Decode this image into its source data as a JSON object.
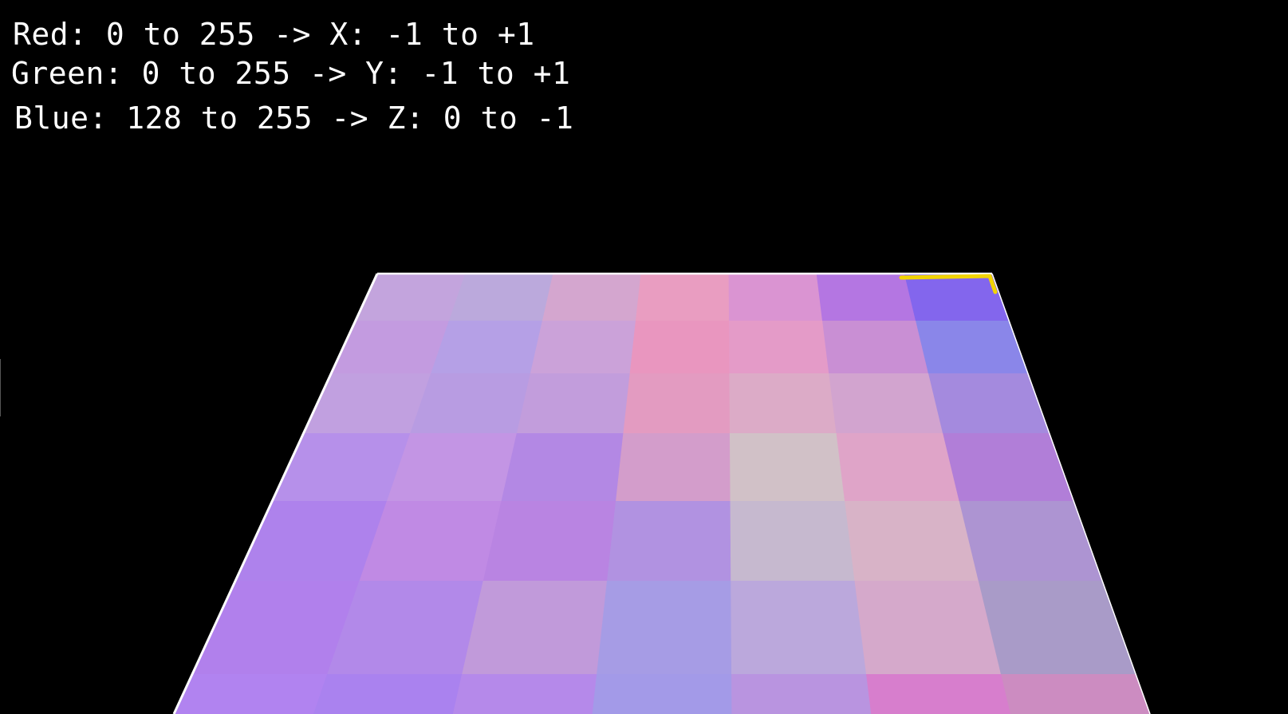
{
  "legend": {
    "red": "Red: 0 to 255 -> X: -1 to +1",
    "green": "Green: 0 to 255 -> Y: -1 to +1",
    "blue": "Blue: 128 to 255 -> Z: 0 to -1"
  },
  "plane": {
    "edge_color": "#ffffff",
    "highlight_color": "#f2d400",
    "rows": [
      [
        "#c3a4dd",
        "#bba9dc",
        "#d4a6cf",
        "#e99dc1",
        "#da94d2",
        "#b476e2",
        "#8366ed"
      ],
      [
        "#c39be0",
        "#b5a0e6",
        "#cba2d9",
        "#e996bf",
        "#e49bc8",
        "#c98fd4",
        "#8a86e9"
      ],
      [
        "#c1a0e0",
        "#b89ce2",
        "#c29ddc",
        "#e39bc1",
        "#dcabc7",
        "#d2a4cf",
        "#a48ade"
      ],
      [
        "#b690ea",
        "#c395e4",
        "#b388e4",
        "#d39dcb",
        "#d1c1c7",
        "#dfa4c8",
        "#b17ed8"
      ],
      [
        "#ae82ec",
        "#c08ae4",
        "#b984e2",
        "#b192e1",
        "#c6b9cf",
        "#d8b3c7",
        "#ad94d2"
      ],
      [
        "#b180ec",
        "#b289e9",
        "#c19ada",
        "#a69ce5",
        "#bba8dc",
        "#d5a9cb",
        "#a99bc8"
      ],
      [
        "#b183f0",
        "#aa82ef",
        "#b589ea",
        "#a39ae8",
        "#b994e0",
        "#d77ecd",
        "#cc8cc1"
      ]
    ]
  }
}
